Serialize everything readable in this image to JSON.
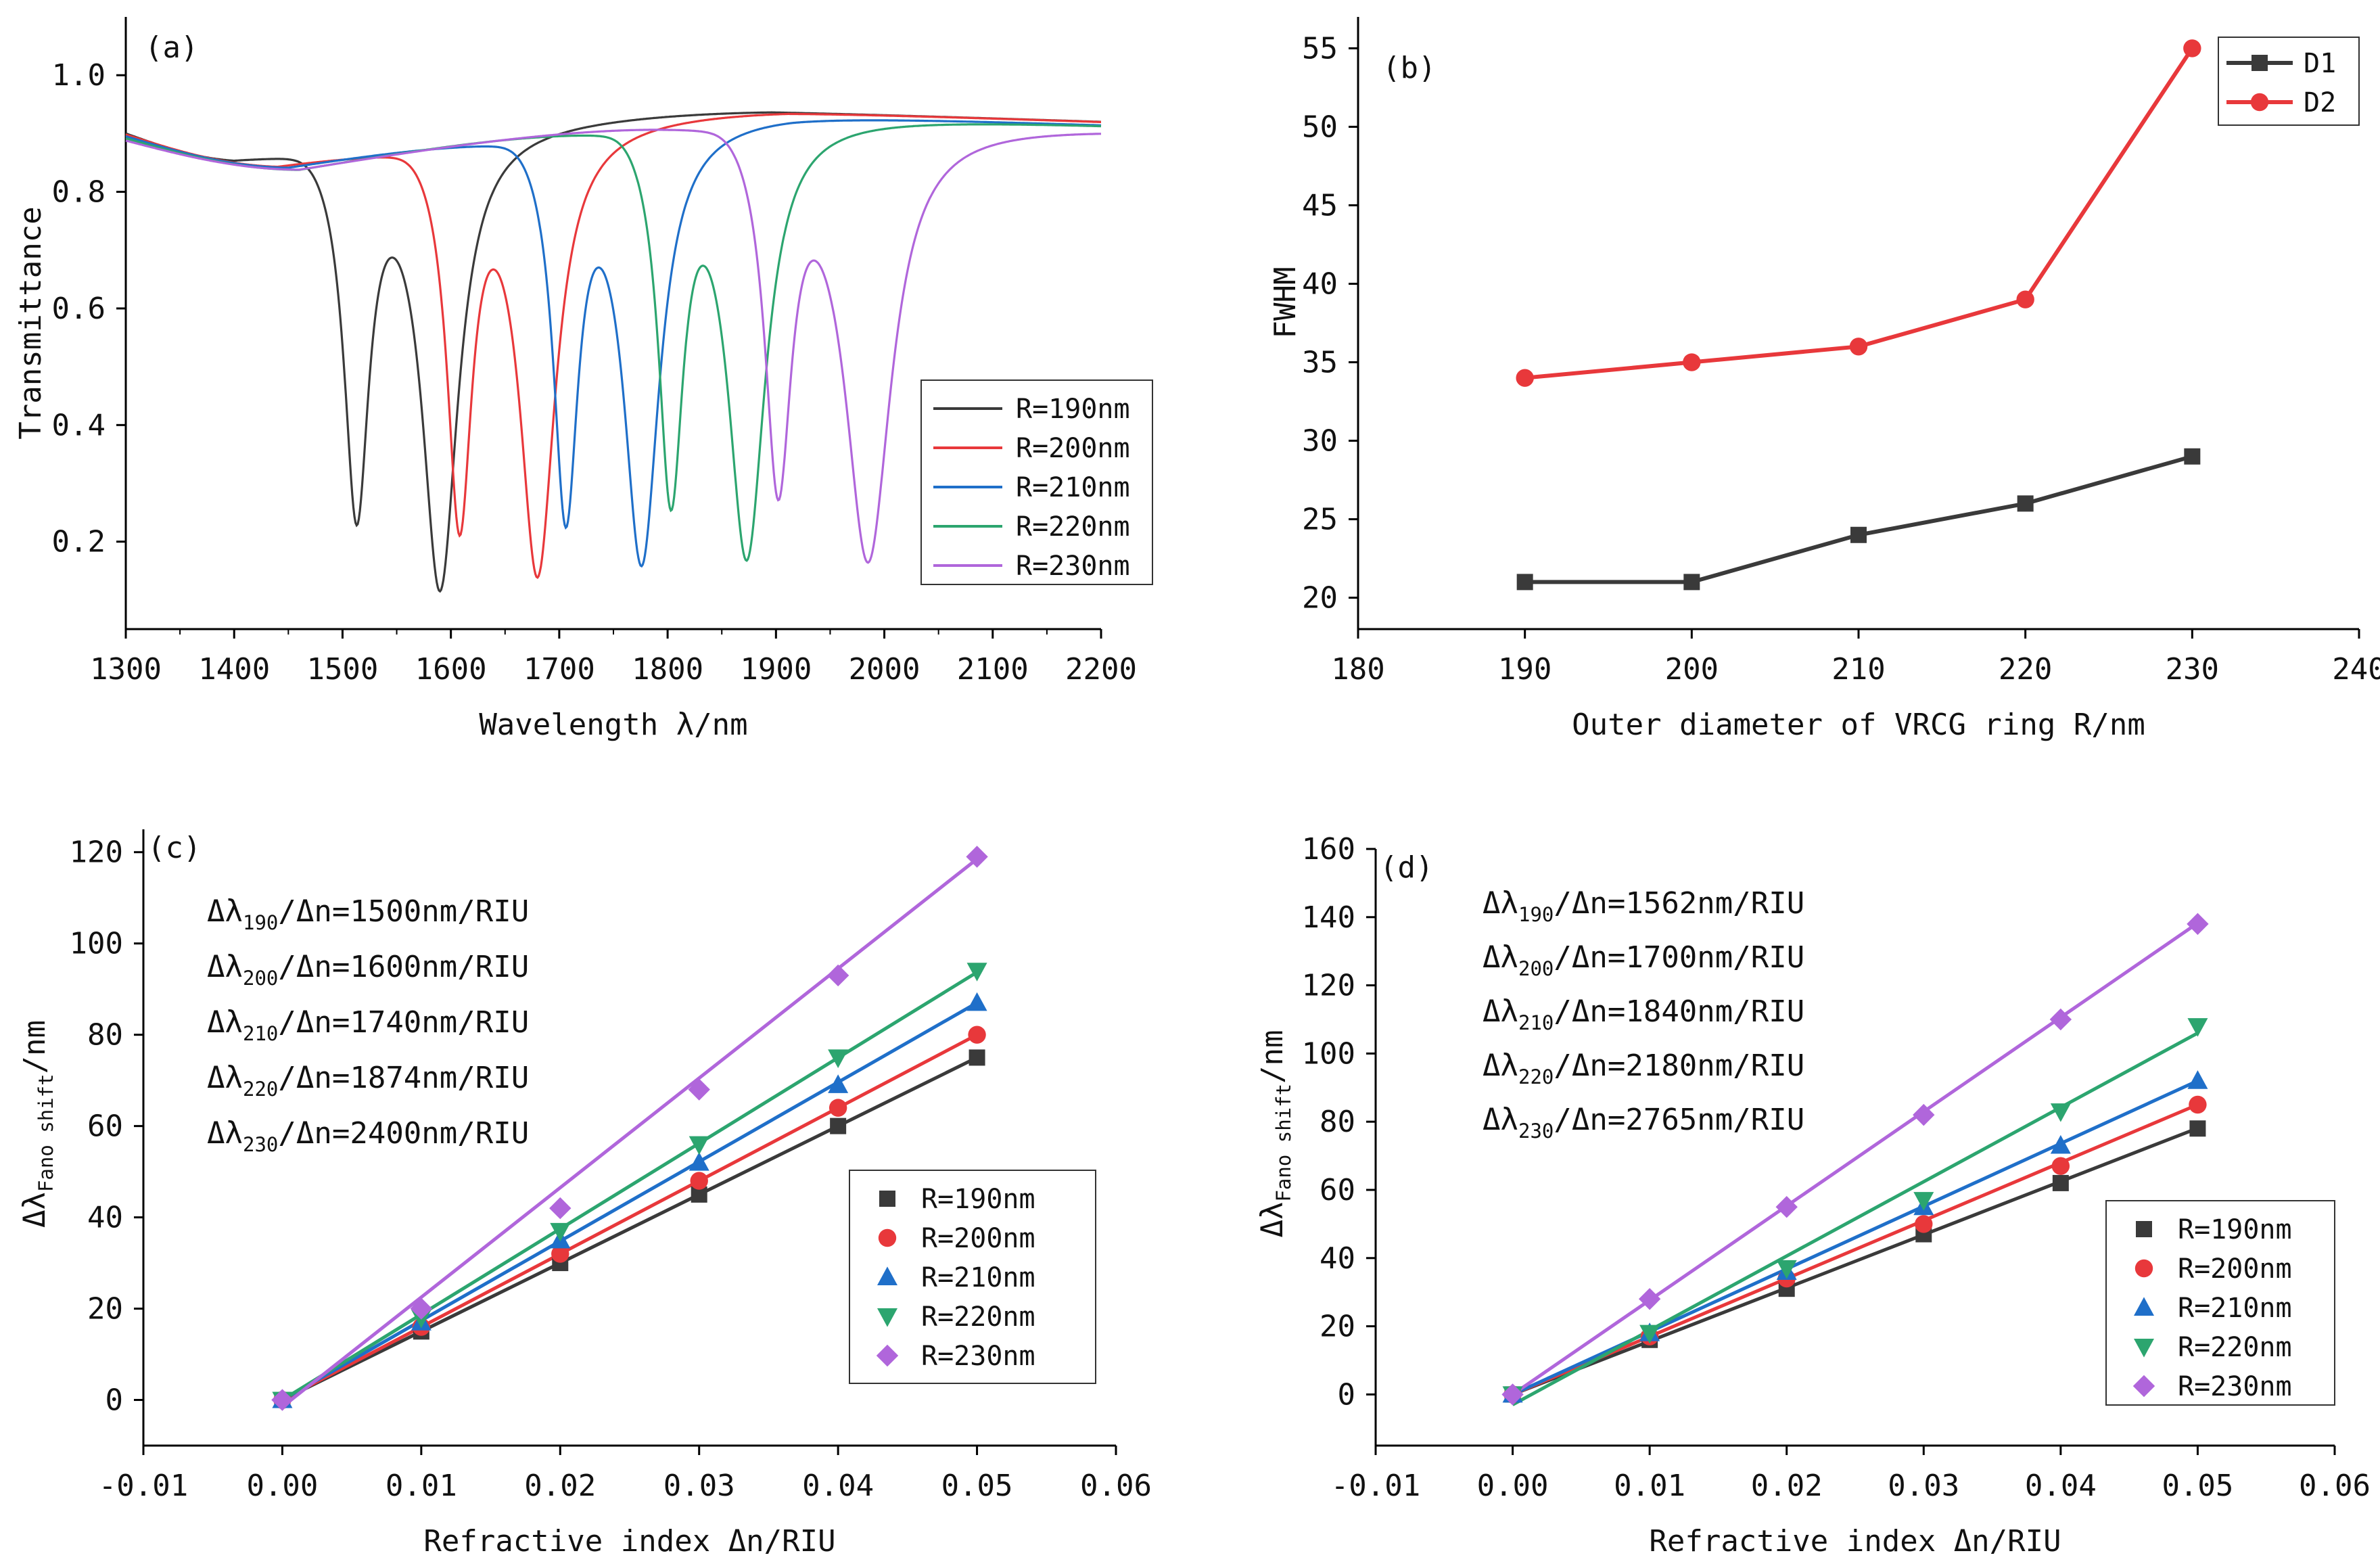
{
  "chart_data": [
    {
      "panel": "(a)",
      "type": "line",
      "xlabel": "Wavelength λ/nm",
      "ylabel": "Transmittance",
      "xlim": [
        1300,
        2200
      ],
      "ylim": [
        0.05,
        1.1
      ],
      "xticks": [
        1300,
        1400,
        1500,
        1600,
        1700,
        1800,
        1900,
        2000,
        2100,
        2200
      ],
      "yticks": [
        "0.2",
        "0.4",
        "0.6",
        "0.8",
        "1.0"
      ],
      "legend_position": "center-right",
      "series": [
        {
          "name": "R=190nm",
          "color": "#3a3a3a",
          "dips": [
            {
              "center": 1513,
              "width": 14,
              "depth": 0.64
            },
            {
              "center": 1590,
              "width": 20,
              "depth": 0.78
            }
          ],
          "base": {
            "min_at": 1400,
            "min": 0.865,
            "plateau": 0.94
          }
        },
        {
          "name": "R=200nm",
          "color": "#e8383b",
          "dips": [
            {
              "center": 1608,
              "width": 14,
              "depth": 0.66
            },
            {
              "center": 1680,
              "width": 20,
              "depth": 0.76
            }
          ],
          "base": {
            "min_at": 1440,
            "min": 0.85,
            "plateau": 0.94
          }
        },
        {
          "name": "R=210nm",
          "color": "#1f6fc9",
          "dips": [
            {
              "center": 1706,
              "width": 14,
              "depth": 0.66
            },
            {
              "center": 1776,
              "width": 20,
              "depth": 0.75
            }
          ],
          "base": {
            "min_at": 1450,
            "min": 0.845,
            "plateau": 0.935
          }
        },
        {
          "name": "R=220nm",
          "color": "#2ca56f",
          "dips": [
            {
              "center": 1803,
              "width": 14,
              "depth": 0.64
            },
            {
              "center": 1873,
              "width": 21,
              "depth": 0.75
            }
          ],
          "base": {
            "min_at": 1460,
            "min": 0.84,
            "plateau": 0.935
          }
        },
        {
          "name": "R=230nm",
          "color": "#b066db",
          "dips": [
            {
              "center": 1902,
              "width": 15,
              "depth": 0.62
            },
            {
              "center": 1985,
              "width": 26,
              "depth": 0.75
            }
          ],
          "base": {
            "min_at": 1460,
            "min": 0.84,
            "plateau": 0.93
          }
        }
      ]
    },
    {
      "panel": "(b)",
      "type": "line",
      "xlabel": "Outer diameter of VRCG ring R/nm",
      "ylabel": "FWHM",
      "xlim": [
        180,
        240
      ],
      "ylim": [
        18,
        57
      ],
      "xticks": [
        180,
        190,
        200,
        210,
        220,
        230,
        240
      ],
      "yticks": [
        20,
        25,
        30,
        35,
        40,
        45,
        50,
        55
      ],
      "legend_position": "top-right",
      "series": [
        {
          "name": "D1",
          "color": "#3a3a3a",
          "marker": "square",
          "x": [
            190,
            200,
            210,
            220,
            230
          ],
          "y": [
            21,
            21,
            24,
            26,
            29
          ]
        },
        {
          "name": "D2",
          "color": "#e8383b",
          "marker": "circle",
          "x": [
            190,
            200,
            210,
            220,
            230
          ],
          "y": [
            34,
            35,
            36,
            39,
            55
          ]
        }
      ]
    },
    {
      "panel": "(c)",
      "type": "scatter",
      "xlabel": "Refractive index Δn/RIU",
      "ylabel": "ΔλFano shift/nm",
      "ylabel_main": "Δλ",
      "ylabel_sub": "Fano shift",
      "ylabel_tail": "/nm",
      "xlim": [
        -0.01,
        0.06
      ],
      "ylim": [
        -10,
        125
      ],
      "xticks": [
        "-0.01",
        "0.00",
        "0.01",
        "0.02",
        "0.03",
        "0.04",
        "0.05",
        "0.06"
      ],
      "yticks": [
        0,
        20,
        40,
        60,
        80,
        100,
        120
      ],
      "legend_position": "bottom-right",
      "annotations": [
        {
          "sub": "190",
          "rest": "/Δn=1500nm/RIU"
        },
        {
          "sub": "200",
          "rest": "/Δn=1600nm/RIU"
        },
        {
          "sub": "210",
          "rest": "/Δn=1740nm/RIU"
        },
        {
          "sub": "220",
          "rest": "/Δn=1874nm/RIU"
        },
        {
          "sub": "230",
          "rest": "/Δn=2400nm/RIU"
        }
      ],
      "series": [
        {
          "name": "R=190nm",
          "color": "#3a3a3a",
          "marker": "square",
          "x": [
            0,
            0.01,
            0.02,
            0.03,
            0.04,
            0.05
          ],
          "y": [
            0,
            15,
            30,
            45,
            60,
            75
          ],
          "fit_slope": 1500,
          "fit_intercept": 0
        },
        {
          "name": "R=200nm",
          "color": "#e8383b",
          "marker": "circle",
          "x": [
            0,
            0.01,
            0.02,
            0.03,
            0.04,
            0.05
          ],
          "y": [
            0,
            16,
            32,
            48,
            64,
            80
          ],
          "fit_slope": 1600,
          "fit_intercept": 0
        },
        {
          "name": "R=210nm",
          "color": "#1f6fc9",
          "marker": "triangle-up",
          "x": [
            0,
            0.01,
            0.02,
            0.03,
            0.04,
            0.05
          ],
          "y": [
            0,
            17,
            35,
            52,
            69,
            87
          ],
          "fit_slope": 1740,
          "fit_intercept": 0
        },
        {
          "name": "R=220nm",
          "color": "#2ca56f",
          "marker": "triangle-down",
          "x": [
            0,
            0.01,
            0.02,
            0.03,
            0.04,
            0.05
          ],
          "y": [
            0,
            18,
            37,
            56,
            75,
            94
          ],
          "fit_slope": 1874,
          "fit_intercept": 0
        },
        {
          "name": "R=230nm",
          "color": "#b066db",
          "marker": "diamond",
          "x": [
            0,
            0.01,
            0.02,
            0.03,
            0.04,
            0.05
          ],
          "y": [
            0,
            20,
            42,
            68,
            93,
            119
          ],
          "fit_slope": 2400,
          "fit_intercept": -1.5
        }
      ]
    },
    {
      "panel": "(d)",
      "type": "scatter",
      "xlabel": "Refractive index Δn/RIU",
      "ylabel": "ΔλFano shift/nm",
      "ylabel_main": "Δλ",
      "ylabel_sub": "Fano shift",
      "ylabel_tail": "/nm",
      "xlim": [
        -0.01,
        0.06
      ],
      "ylim": [
        -15,
        160
      ],
      "xticks": [
        "-0.01",
        "0.00",
        "0.01",
        "0.02",
        "0.03",
        "0.04",
        "0.05",
        "0.06"
      ],
      "yticks": [
        0,
        20,
        40,
        60,
        80,
        100,
        120,
        140,
        160
      ],
      "legend_position": "bottom-right",
      "annotations": [
        {
          "sub": "190",
          "rest": "/Δn=1562nm/RIU"
        },
        {
          "sub": "200",
          "rest": "/Δn=1700nm/RIU"
        },
        {
          "sub": "210",
          "rest": "/Δn=1840nm/RIU"
        },
        {
          "sub": "220",
          "rest": "/Δn=2180nm/RIU"
        },
        {
          "sub": "230",
          "rest": "/Δn=2765nm/RIU"
        }
      ],
      "series": [
        {
          "name": "R=190nm",
          "color": "#3a3a3a",
          "marker": "square",
          "x": [
            0,
            0.01,
            0.02,
            0.03,
            0.04,
            0.05
          ],
          "y": [
            0,
            16,
            31,
            47,
            62,
            78
          ],
          "fit_slope": 1562,
          "fit_intercept": 0
        },
        {
          "name": "R=200nm",
          "color": "#e8383b",
          "marker": "circle",
          "x": [
            0,
            0.01,
            0.02,
            0.03,
            0.04,
            0.05
          ],
          "y": [
            0,
            17,
            34,
            50,
            67,
            85
          ],
          "fit_slope": 1700,
          "fit_intercept": 0
        },
        {
          "name": "R=210nm",
          "color": "#1f6fc9",
          "marker": "triangle-up",
          "x": [
            0,
            0.01,
            0.02,
            0.03,
            0.04,
            0.05
          ],
          "y": [
            0,
            18,
            36,
            55,
            73,
            92
          ],
          "fit_slope": 1840,
          "fit_intercept": 0
        },
        {
          "name": "R=220nm",
          "color": "#2ca56f",
          "marker": "triangle-down",
          "x": [
            0,
            0.01,
            0.02,
            0.03,
            0.04,
            0.05
          ],
          "y": [
            0,
            18,
            37,
            57,
            83,
            108
          ],
          "fit_slope": 2180,
          "fit_intercept": -3
        },
        {
          "name": "R=230nm",
          "color": "#b066db",
          "marker": "diamond",
          "x": [
            0,
            0.01,
            0.02,
            0.03,
            0.04,
            0.05
          ],
          "y": [
            0,
            28,
            55,
            82,
            110,
            138
          ],
          "fit_slope": 2765,
          "fit_intercept": 0
        }
      ]
    }
  ]
}
